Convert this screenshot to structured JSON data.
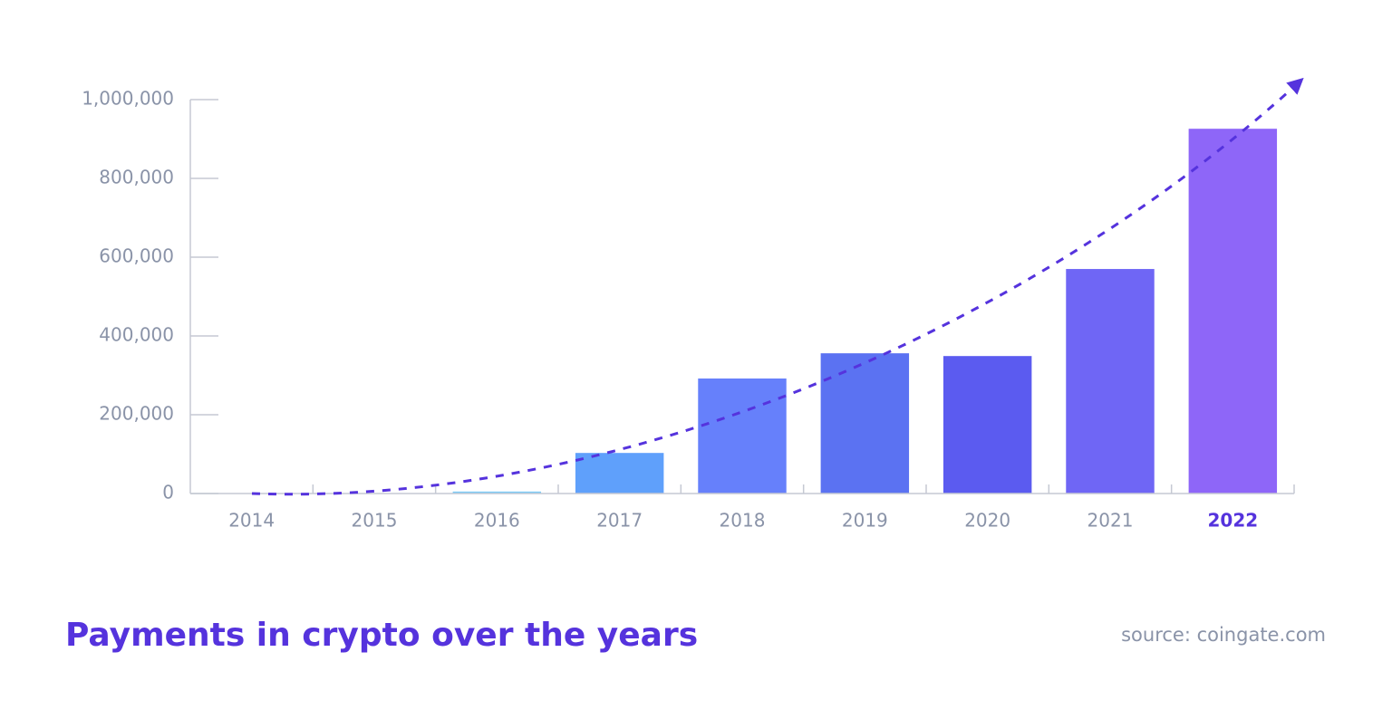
{
  "chart_data": {
    "type": "bar",
    "title": "Payments in crypto over the years",
    "source": "source: coingate.com",
    "categories": [
      "2014",
      "2015",
      "2016",
      "2017",
      "2018",
      "2019",
      "2020",
      "2021",
      "2022"
    ],
    "values": [
      0,
      1000,
      5000,
      103000,
      292000,
      356000,
      349000,
      570000,
      926000
    ],
    "colors": [
      "#b9e3fb",
      "#b9e3fb",
      "#7ccbf6",
      "#5fa0fb",
      "#6680fb",
      "#5b72f2",
      "#5b5bf0",
      "#6f66f5",
      "#8e66f8"
    ],
    "highlight": 8,
    "ylim": [
      0,
      1000000
    ],
    "yticks": [
      0,
      {
        "value": 200000,
        "label": "200,000"
      },
      {
        "value": 400000,
        "label": "400,000"
      },
      {
        "value": 600000,
        "label": "600,000"
      },
      {
        "value": 800000,
        "label": "800,000"
      },
      {
        "value": 1000000,
        "label": "1,000,000"
      }
    ]
  }
}
